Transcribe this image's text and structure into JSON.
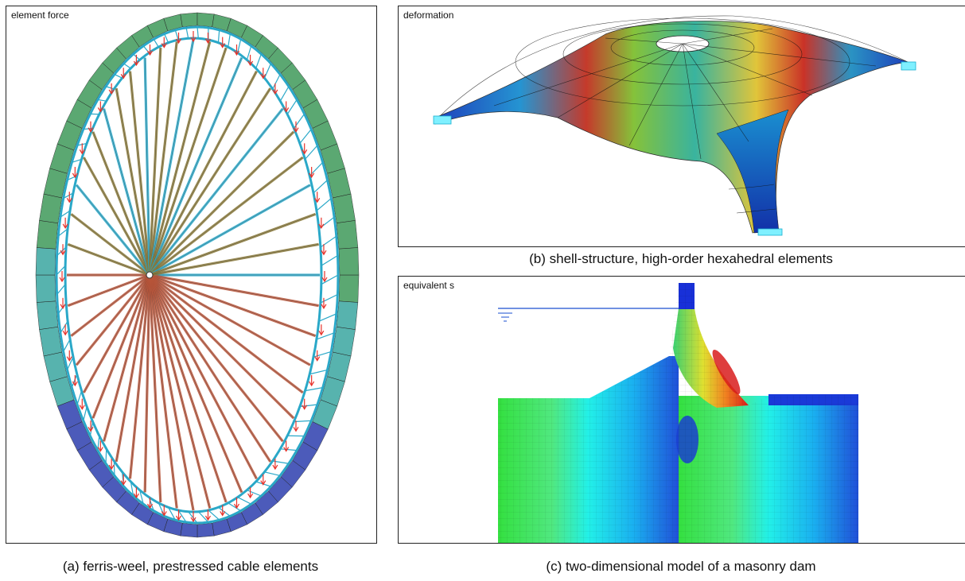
{
  "panels": {
    "a": {
      "label": "element force",
      "caption": "(a) ferris-weel, prestressed cable elements"
    },
    "b": {
      "label": "deformation",
      "caption": "(b) shell-structure, high-order hexahedral elements"
    },
    "c": {
      "label": "equivalent stres",
      "caption": "(c) two-dimensional model of a masonry dam"
    }
  },
  "colors": {
    "cable_warm": "#b8553a",
    "cable_mid": "#8a7a3a",
    "truss": "#2aa8c8",
    "force_green": "#3f9a5a",
    "force_teal": "#3aa6a0",
    "force_blue": "#2d3fae",
    "load_arrow": "#e8322a",
    "water_line": "#1a4fd0"
  }
}
